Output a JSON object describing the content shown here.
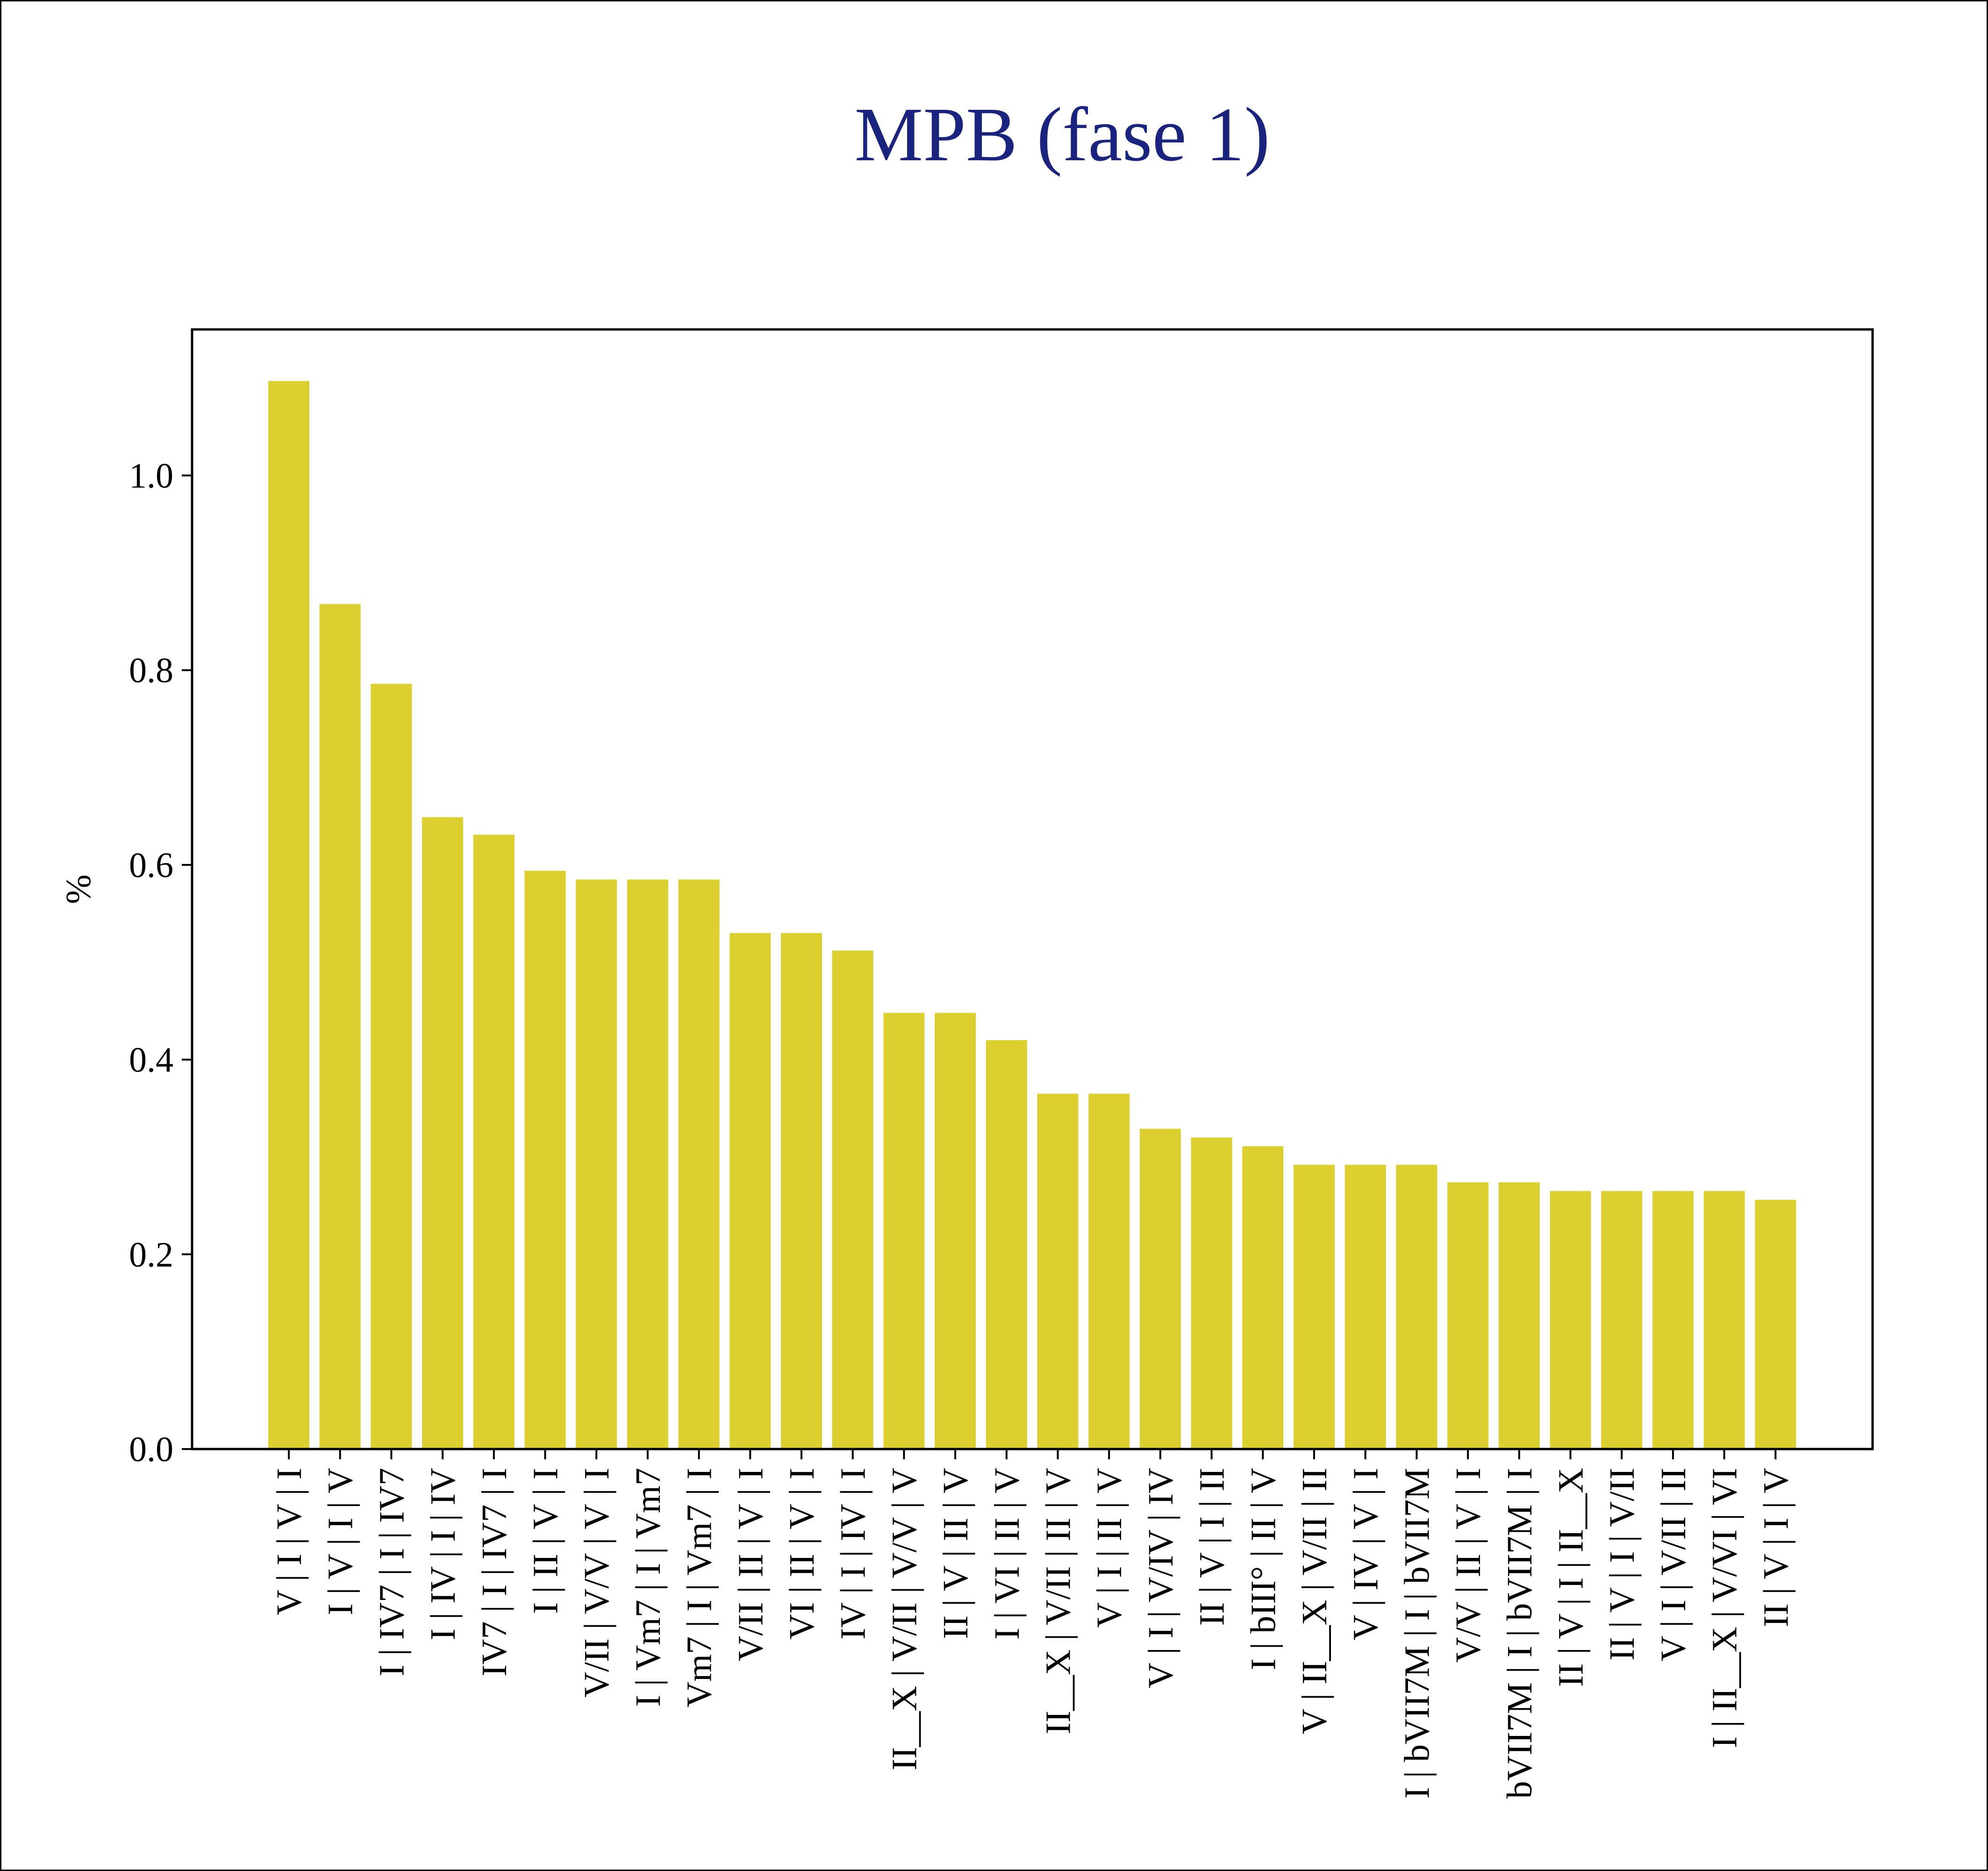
{
  "chart_data": {
    "type": "bar",
    "title": "MPB (fase 1)",
    "xlabel": "",
    "ylabel": "%",
    "ylim": [
      0,
      1.15
    ],
    "yticks": [
      0.0,
      0.2,
      0.4,
      0.6,
      0.8,
      1.0
    ],
    "ytick_labels": [
      "0.0",
      "0.2",
      "0.4",
      "0.6",
      "0.8",
      "1.0"
    ],
    "grid": false,
    "legend": "none",
    "colors": {
      "bar": "#dbd030",
      "title": "#1a237e",
      "axis": "#000000"
    },
    "categories": [
      "V | I | V | I",
      "I | V | I | V",
      "I | IV7 | I | IV7",
      "I | IV | I | IV",
      "IV7 | I | IV7 | I",
      "I | II | V | I",
      "V/II | V/V | V | I",
      "I | Vm7 | I | Vm7",
      "Vm7 | I | Vm7 | I",
      "V/II | II | V | I",
      "VI | II | V | I",
      "IV | I | IV | I",
      "II__X | V/II | V/V | V",
      "II | V | II | V",
      "I | VI | II | V",
      "II__X | V/II | II | V",
      "V | I | II | V",
      "V | I | V/IV | IV",
      "II | V | I | II",
      "I | bIII° | II | V",
      "V | II__X | V/II | II",
      "V | IV | V | I",
      "I | bVII7M | I | bVII7M",
      "V/V | II | V | I",
      "bVII7M | I | bVII7M | I",
      "II | V | I | II__X",
      "II | V | I | V/II",
      "V | I | V/II | II",
      "I | II__X | V/VI | VI",
      "II | V | I | V"
    ],
    "values": [
      1.097,
      0.868,
      0.786,
      0.649,
      0.631,
      0.594,
      0.585,
      0.585,
      0.585,
      0.53,
      0.53,
      0.512,
      0.448,
      0.448,
      0.42,
      0.365,
      0.365,
      0.329,
      0.32,
      0.311,
      0.292,
      0.292,
      0.292,
      0.274,
      0.274,
      0.265,
      0.265,
      0.265,
      0.265,
      0.256
    ]
  }
}
